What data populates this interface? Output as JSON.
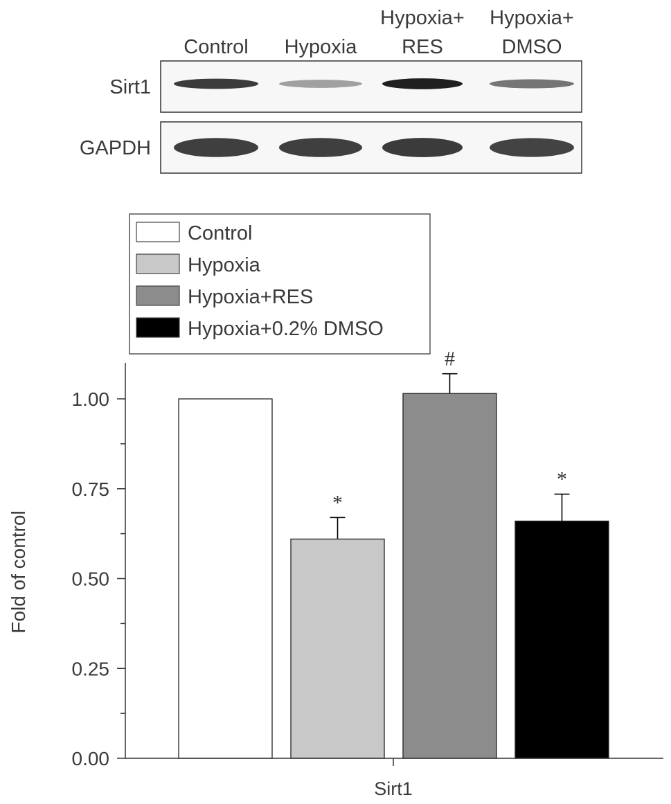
{
  "blot": {
    "lane_labels": [
      {
        "lines": [
          "Control"
        ]
      },
      {
        "lines": [
          "Hypoxia"
        ]
      },
      {
        "lines": [
          "Hypoxia+",
          "RES"
        ]
      },
      {
        "lines": [
          "Hypoxia+",
          "DMSO"
        ]
      }
    ],
    "rows": [
      {
        "label": "Sirt1",
        "band_intensity": [
          0.82,
          0.35,
          0.95,
          0.55
        ]
      },
      {
        "label": "GAPDH",
        "band_intensity": [
          0.8,
          0.8,
          0.82,
          0.78
        ]
      }
    ]
  },
  "chart_data": {
    "type": "bar",
    "categories": [
      "Sirt1"
    ],
    "xlabel": "Sirt1",
    "ylabel": "Fold of control",
    "ylim": [
      0,
      1.1
    ],
    "yticks": [
      "0.00",
      "0.25",
      "0.50",
      "0.75",
      "1.00"
    ],
    "legend_position": "top-left",
    "series": [
      {
        "name": "Control",
        "values": [
          1.0
        ],
        "error": [
          0.0
        ],
        "annotation": "",
        "color": "#ffffff"
      },
      {
        "name": "Hypoxia",
        "values": [
          0.61
        ],
        "error": [
          0.06
        ],
        "annotation": "*",
        "color": "#c8c8c8"
      },
      {
        "name": "Hypoxia+RES",
        "values": [
          1.015
        ],
        "error": [
          0.055
        ],
        "annotation": "#",
        "color": "#8c8c8c"
      },
      {
        "name": "Hypoxia+0.2% DMSO",
        "values": [
          0.66
        ],
        "error": [
          0.075
        ],
        "annotation": "*",
        "color": "#000000"
      }
    ]
  }
}
